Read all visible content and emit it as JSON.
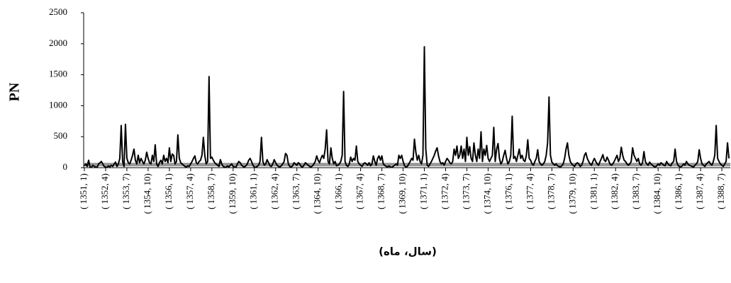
{
  "chart_data": {
    "type": "line",
    "y_label": "PN",
    "x_label": "(سال، ماه)",
    "color": "#000000",
    "threshold": 50,
    "threshold_color": "#999999",
    "ylim": [
      0,
      2500
    ],
    "yticks": [
      0,
      500,
      1000,
      1500,
      2000,
      2500
    ],
    "categories": [
      "( 1351, 1)",
      null,
      null,
      null,
      null,
      null,
      null,
      null,
      null,
      null,
      null,
      null,
      null,
      null,
      null,
      "( 1352, 4)",
      null,
      null,
      null,
      null,
      null,
      null,
      null,
      null,
      null,
      null,
      null,
      null,
      null,
      null,
      "( 1353, 7)",
      null,
      null,
      null,
      null,
      null,
      null,
      null,
      null,
      null,
      null,
      null,
      null,
      null,
      null,
      "( 1354, 10)",
      null,
      null,
      null,
      null,
      null,
      null,
      null,
      null,
      null,
      null,
      null,
      null,
      null,
      null,
      "( 1356, 1)",
      null,
      null,
      null,
      null,
      null,
      null,
      null,
      null,
      null,
      null,
      null,
      null,
      null,
      null,
      "( 1357, 4)",
      null,
      null,
      null,
      null,
      null,
      null,
      null,
      null,
      null,
      null,
      null,
      null,
      null,
      null,
      "( 1358, 7)",
      null,
      null,
      null,
      null,
      null,
      null,
      null,
      null,
      null,
      null,
      null,
      null,
      null,
      null,
      "( 1359, 10)",
      null,
      null,
      null,
      null,
      null,
      null,
      null,
      null,
      null,
      null,
      null,
      null,
      null,
      null,
      "( 1361, 1)",
      null,
      null,
      null,
      null,
      null,
      null,
      null,
      null,
      null,
      null,
      null,
      null,
      null,
      null,
      "( 1362, 4)",
      null,
      null,
      null,
      null,
      null,
      null,
      null,
      null,
      null,
      null,
      null,
      null,
      null,
      null,
      "( 1363, 7)",
      null,
      null,
      null,
      null,
      null,
      null,
      null,
      null,
      null,
      null,
      null,
      null,
      null,
      null,
      "( 1364, 10)",
      null,
      null,
      null,
      null,
      null,
      null,
      null,
      null,
      null,
      null,
      null,
      null,
      null,
      null,
      "( 1366, 1)",
      null,
      null,
      null,
      null,
      null,
      null,
      null,
      null,
      null,
      null,
      null,
      null,
      null,
      null,
      "( 1367, 4)",
      null,
      null,
      null,
      null,
      null,
      null,
      null,
      null,
      null,
      null,
      null,
      null,
      null,
      null,
      "( 1368, 7)",
      null,
      null,
      null,
      null,
      null,
      null,
      null,
      null,
      null,
      null,
      null,
      null,
      null,
      null,
      "( 1369, 10)",
      null,
      null,
      null,
      null,
      null,
      null,
      null,
      null,
      null,
      null,
      null,
      null,
      null,
      null,
      "( 1371, 1)",
      null,
      null,
      null,
      null,
      null,
      null,
      null,
      null,
      null,
      null,
      null,
      null,
      null,
      null,
      "( 1372, 4)",
      null,
      null,
      null,
      null,
      null,
      null,
      null,
      null,
      null,
      null,
      null,
      null,
      null,
      null,
      "( 1373, 7)",
      null,
      null,
      null,
      null,
      null,
      null,
      null,
      null,
      null,
      null,
      null,
      null,
      null,
      null,
      "( 1374, 10)",
      null,
      null,
      null,
      null,
      null,
      null,
      null,
      null,
      null,
      null,
      null,
      null,
      null,
      null,
      "( 1376, 1)",
      null,
      null,
      null,
      null,
      null,
      null,
      null,
      null,
      null,
      null,
      null,
      null,
      null,
      null,
      "( 1377, 4)",
      null,
      null,
      null,
      null,
      null,
      null,
      null,
      null,
      null,
      null,
      null,
      null,
      null,
      null,
      "( 1378, 7)",
      null,
      null,
      null,
      null,
      null,
      null,
      null,
      null,
      null,
      null,
      null,
      null,
      null,
      null,
      "( 1379, 10)",
      null,
      null,
      null,
      null,
      null,
      null,
      null,
      null,
      null,
      null,
      null,
      null,
      null,
      null,
      "( 1381, 1)",
      null,
      null,
      null,
      null,
      null,
      null,
      null,
      null,
      null,
      null,
      null,
      null,
      null,
      null,
      "( 1382, 4)",
      null,
      null,
      null,
      null,
      null,
      null,
      null,
      null,
      null,
      null,
      null,
      null,
      null,
      null,
      "( 1383, 7)",
      null,
      null,
      null,
      null,
      null,
      null,
      null,
      null,
      null,
      null,
      null,
      null,
      null,
      null,
      "( 1384, 10)",
      null,
      null,
      null,
      null,
      null,
      null,
      null,
      null,
      null,
      null,
      null,
      null,
      null,
      null,
      "( 1386, 1)",
      null,
      null,
      null,
      null,
      null,
      null,
      null,
      null,
      null,
      null,
      null,
      null,
      null,
      null,
      "( 1387, 4)",
      null,
      null,
      null,
      null,
      null,
      null,
      null,
      null,
      null,
      null,
      null,
      null,
      null,
      null,
      "( 1388, 7)",
      null,
      null,
      null,
      null,
      null
    ],
    "values": [
      30,
      60,
      20,
      120,
      10,
      5,
      40,
      20,
      10,
      5,
      60,
      80,
      100,
      60,
      20,
      10,
      5,
      30,
      10,
      40,
      20,
      60,
      90,
      20,
      60,
      150,
      680,
      100,
      20,
      700,
      150,
      80,
      60,
      120,
      200,
      300,
      120,
      60,
      200,
      80,
      150,
      100,
      60,
      120,
      250,
      150,
      80,
      60,
      200,
      100,
      370,
      60,
      20,
      80,
      120,
      60,
      200,
      100,
      150,
      80,
      320,
      100,
      220,
      200,
      60,
      100,
      530,
      150,
      80,
      60,
      40,
      20,
      10,
      30,
      20,
      60,
      100,
      150,
      190,
      80,
      60,
      100,
      120,
      200,
      490,
      200,
      60,
      100,
      1470,
      150,
      170,
      120,
      80,
      60,
      40,
      20,
      130,
      60,
      20,
      10,
      5,
      30,
      10,
      40,
      60,
      20,
      10,
      5,
      60,
      100,
      80,
      40,
      20,
      10,
      30,
      60,
      120,
      150,
      100,
      40,
      10,
      5,
      20,
      40,
      100,
      490,
      100,
      40,
      60,
      130,
      80,
      30,
      20,
      60,
      130,
      80,
      40,
      20,
      10,
      30,
      60,
      100,
      230,
      200,
      60,
      20,
      10,
      30,
      80,
      60,
      40,
      80,
      60,
      20,
      10,
      40,
      80,
      60,
      40,
      20,
      10,
      30,
      60,
      100,
      190,
      120,
      80,
      150,
      200,
      150,
      300,
      610,
      100,
      60,
      320,
      150,
      60,
      100,
      30,
      40,
      60,
      100,
      200,
      1230,
      100,
      40,
      20,
      60,
      170,
      100,
      150,
      120,
      350,
      100,
      60,
      40,
      20,
      60,
      80,
      60,
      40,
      80,
      30,
      60,
      190,
      100,
      40,
      150,
      190,
      120,
      190,
      60,
      40,
      20,
      10,
      30,
      10,
      5,
      20,
      40,
      60,
      40,
      200,
      150,
      200,
      100,
      30,
      10,
      20,
      60,
      100,
      150,
      120,
      460,
      250,
      120,
      200,
      100,
      60,
      200,
      1950,
      300,
      40,
      20,
      60,
      100,
      150,
      200,
      270,
      320,
      190,
      100,
      60,
      80,
      40,
      100,
      150,
      120,
      80,
      60,
      100,
      300,
      200,
      350,
      150,
      200,
      350,
      150,
      300,
      100,
      490,
      200,
      340,
      150,
      100,
      400,
      200,
      100,
      300,
      150,
      580,
      100,
      300,
      200,
      360,
      150,
      100,
      150,
      200,
      650,
      100,
      300,
      390,
      150,
      60,
      100,
      200,
      280,
      150,
      60,
      100,
      200,
      830,
      150,
      180,
      100,
      200,
      300,
      150,
      200,
      120,
      100,
      200,
      450,
      150,
      120,
      60,
      40,
      100,
      150,
      290,
      100,
      60,
      40,
      60,
      100,
      200,
      400,
      1140,
      200,
      90,
      60,
      40,
      60,
      30,
      20,
      10,
      30,
      60,
      150,
      300,
      400,
      200,
      100,
      60,
      40,
      20,
      60,
      80,
      60,
      20,
      40,
      100,
      200,
      240,
      150,
      100,
      60,
      40,
      100,
      150,
      100,
      60,
      40,
      100,
      150,
      210,
      120,
      100,
      170,
      120,
      60,
      40,
      60,
      100,
      150,
      200,
      100,
      150,
      330,
      200,
      120,
      100,
      60,
      40,
      60,
      100,
      320,
      200,
      150,
      100,
      150,
      60,
      40,
      80,
      260,
      100,
      60,
      40,
      90,
      60,
      40,
      20,
      10,
      30,
      60,
      40,
      80,
      60,
      40,
      30,
      100,
      60,
      40,
      30,
      80,
      100,
      300,
      100,
      40,
      20,
      10,
      30,
      60,
      40,
      100,
      60,
      40,
      30,
      20,
      10,
      40,
      60,
      100,
      290,
      150,
      60,
      40,
      20,
      60,
      80,
      100,
      60,
      40,
      100,
      200,
      680,
      150,
      100,
      60,
      40,
      20,
      60,
      100,
      400,
      150
    ]
  }
}
